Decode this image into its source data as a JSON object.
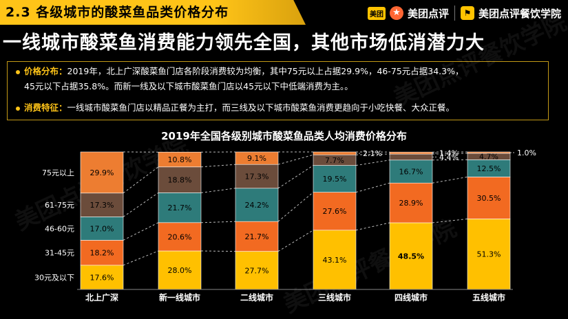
{
  "header": {
    "section_title": "2.3 各级城市的酸菜鱼品类价格分布",
    "logo_meituan_badge": "美团",
    "logo_meituan_dianping": "美团点评",
    "logo_academy": "美团点评餐饮学院",
    "logo_dp_glyph": "★",
    "logo_academy_glyph": "⚑"
  },
  "headline": "一线城市酸菜鱼消费能力领先全国，其他市场低消潜力大",
  "info": {
    "price_key": "价格分布：",
    "price_line1": "2019年，北上广深酸菜鱼门店各阶段消费较为均衡，其中75元以上占据29.9%，46-75元占据34.3%，",
    "price_line2": "45元以下占据35.8%。而新一线及以下城市酸菜鱼门店以45元以下中低端消费为主。。",
    "consume_key": "消费特征：",
    "consume_line": "一线城市酸菜鱼门店以精品正餐为主打，而三线及以下城市酸菜鱼消费更趋向于小吃快餐、大众正餐。"
  },
  "watermark": "美团点评餐饮学院",
  "chart_data": {
    "type": "bar",
    "stacked": "percent",
    "title": "2019年全国各级别城市酸菜鱼品类人均消费价格分布",
    "categories": [
      "北上广深",
      "新一线城市",
      "二线城市",
      "三线城市",
      "四线城市",
      "五线城市"
    ],
    "series": [
      {
        "name": "30元及以下",
        "color": "#ffc000",
        "values": [
          17.6,
          28.0,
          27.7,
          43.1,
          48.5,
          51.3
        ]
      },
      {
        "name": "31-45元",
        "color": "#f26a21",
        "values": [
          18.2,
          20.6,
          21.7,
          27.6,
          28.9,
          30.5
        ]
      },
      {
        "name": "46-60元",
        "color": "#2e7b7a",
        "values": [
          17.0,
          21.7,
          24.2,
          19.5,
          16.7,
          12.5
        ]
      },
      {
        "name": "61-75元",
        "color": "#6b4c3b",
        "values": [
          17.3,
          18.8,
          17.3,
          7.7,
          4.4,
          4.7
        ]
      },
      {
        "name": "75元以上",
        "color": "#ed7d31",
        "values": [
          29.9,
          10.8,
          9.1,
          2.1,
          1.4,
          1.0
        ]
      }
    ],
    "label_text_color": "#000000",
    "bold_label": {
      "category": "四线城市",
      "series": "30元及以下"
    },
    "ylim": [
      0,
      100
    ],
    "legend": "left"
  }
}
